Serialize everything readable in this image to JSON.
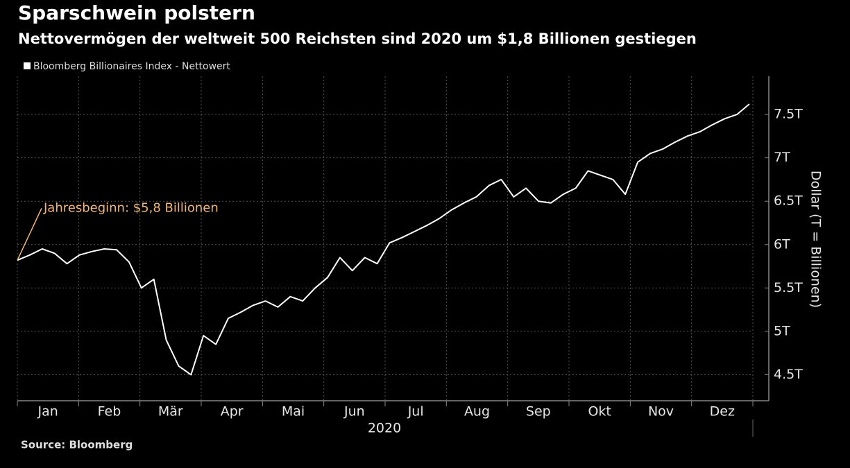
{
  "chart_data": {
    "type": "line",
    "title": "Sparschwein polstern",
    "subtitle": "Nettovermögen der weltweit 500 Reichsten sind 2020 um $1,8 Billionen gestiegen",
    "source": "Source: Bloomberg",
    "xlabel": "2020",
    "ylabel": "Dollar (T = Billionen)",
    "annotation": "Jahresbeginn: $5,8 Billionen",
    "annotation_color": "#f2b77a",
    "grid": true,
    "categories": [
      null,
      null,
      "Jan",
      null,
      null,
      null,
      null,
      "Feb",
      null,
      null,
      null,
      null,
      "Mär",
      null,
      null,
      null,
      null,
      "Apr",
      null,
      null,
      null,
      null,
      "Mai",
      null,
      null,
      null,
      null,
      "Jun",
      null,
      null,
      null,
      null,
      "Jul",
      null,
      null,
      null,
      null,
      "Aug",
      null,
      null,
      null,
      null,
      "Sep",
      null,
      null,
      null,
      null,
      "Okt",
      null,
      null,
      null,
      null,
      "Nov",
      null,
      null,
      null,
      null,
      "Dez",
      null,
      null
    ],
    "series": [
      {
        "name": "Bloomberg Billionaires Index - Nettowert",
        "color": "#ffffff",
        "values": [
          5.82,
          5.88,
          5.95,
          5.9,
          5.78,
          5.88,
          5.92,
          5.95,
          5.94,
          5.8,
          5.5,
          5.6,
          4.9,
          4.6,
          4.5,
          4.95,
          4.85,
          5.15,
          5.22,
          5.3,
          5.35,
          5.28,
          5.4,
          5.35,
          5.5,
          5.62,
          5.85,
          5.7,
          5.85,
          5.78,
          6.02,
          6.08,
          6.15,
          6.22,
          6.3,
          6.4,
          6.48,
          6.55,
          6.68,
          6.75,
          6.55,
          6.65,
          6.5,
          6.48,
          6.58,
          6.65,
          6.85,
          6.8,
          6.75,
          6.58,
          6.95,
          7.05,
          7.1,
          7.18,
          7.25,
          7.3,
          7.38,
          7.45,
          7.5,
          7.62
        ]
      }
    ],
    "ylim": [
      4.2,
      7.94
    ],
    "yticks": [
      {
        "value": 4.5,
        "label": "4.5T"
      },
      {
        "value": 5,
        "label": "5T"
      },
      {
        "value": 5.5,
        "label": "5.5T"
      },
      {
        "value": 6,
        "label": "6T"
      },
      {
        "value": 6.5,
        "label": "6.5T"
      },
      {
        "value": 7,
        "label": "7T"
      },
      {
        "value": 7.5,
        "label": "7.5T"
      }
    ]
  }
}
